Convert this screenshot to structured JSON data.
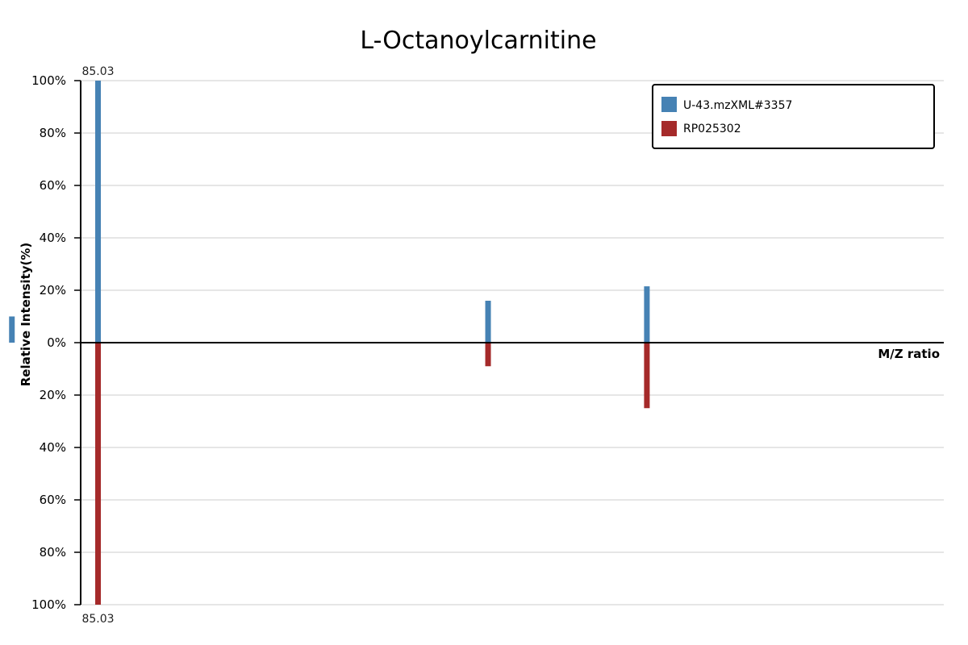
{
  "chart_data": {
    "type": "bar",
    "title": "L-Octanoylcarnitine",
    "xlabel": "M/Z ratio",
    "ylabel": "Relative Intensity(%)",
    "xlim": [
      80,
      330
    ],
    "ylim": [
      -100,
      100
    ],
    "y_ticks": [
      100,
      80,
      60,
      40,
      20,
      0,
      -20,
      -40,
      -60,
      -80,
      -100
    ],
    "y_tick_labels": [
      "100%",
      "80%",
      "60%",
      "40%",
      "20%",
      "0%",
      "20%",
      "40%",
      "60%",
      "80%",
      "100%"
    ],
    "grid": true,
    "legend_position": "top-right",
    "series": [
      {
        "name": "U-43.mzXML#3357",
        "color": "#4682b4",
        "direction": "up",
        "points": [
          {
            "mz": 60.08,
            "intensity": 10
          },
          {
            "mz": 85.03,
            "intensity": 100,
            "label": "85.03"
          },
          {
            "mz": 198.0,
            "intensity": 16
          },
          {
            "mz": 244.0,
            "intensity": 21.5
          }
        ]
      },
      {
        "name": "RP025302",
        "color": "#a52a2a",
        "direction": "down",
        "points": [
          {
            "mz": 85.03,
            "intensity": 100,
            "label": "85.03"
          },
          {
            "mz": 198.0,
            "intensity": 9
          },
          {
            "mz": 244.0,
            "intensity": 25
          }
        ]
      }
    ]
  }
}
